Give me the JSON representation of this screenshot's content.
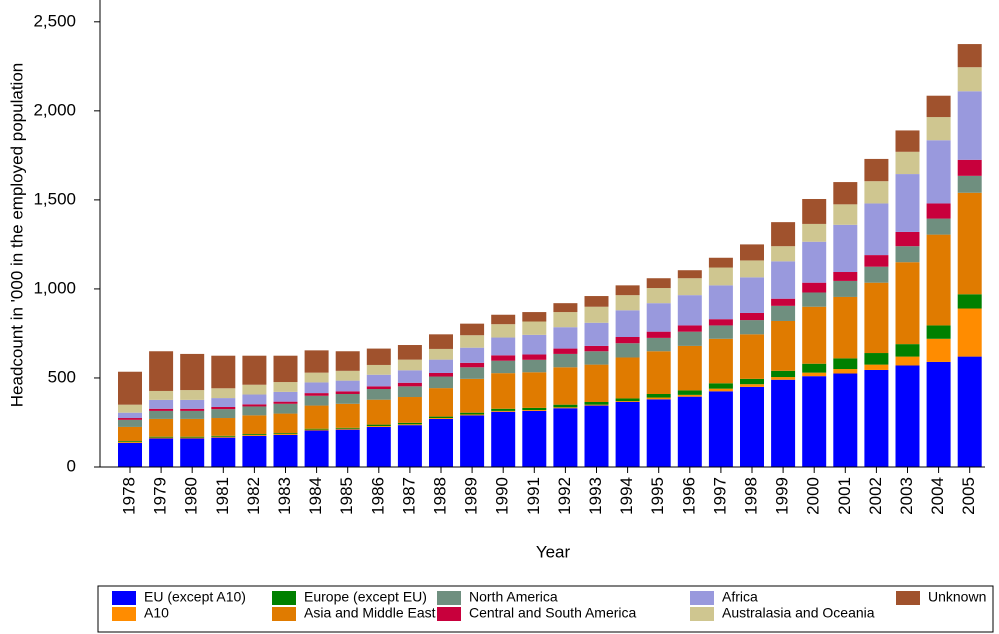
{
  "chart_data": {
    "type": "stacked_bar",
    "x_label": "Year",
    "y_label": "Headcount in '000 in the employed population",
    "categories": [
      "1978",
      "1979",
      "1980",
      "1981",
      "1982",
      "1983",
      "1984",
      "1985",
      "1986",
      "1987",
      "1988",
      "1989",
      "1990",
      "1991",
      "1992",
      "1993",
      "1994",
      "1995",
      "1996",
      "1997",
      "1998",
      "1999",
      "2000",
      "2001",
      "2002",
      "2003",
      "2004",
      "2005"
    ],
    "ylim": [
      0,
      2600
    ],
    "yticks": [
      0,
      500,
      {
        "value": 1000,
        "label": "1,000"
      },
      {
        "value": 1500,
        "label": "1,500"
      },
      {
        "value": 2000,
        "label": "2,000"
      },
      {
        "value": 2500,
        "label": "2,500"
      }
    ],
    "series": [
      {
        "name": "EU (except A10)",
        "color": "#0000ff",
        "values": [
          135,
          160,
          160,
          165,
          175,
          180,
          205,
          210,
          225,
          235,
          270,
          290,
          310,
          315,
          330,
          345,
          365,
          380,
          395,
          425,
          450,
          490,
          510,
          525,
          545,
          570,
          590,
          620
        ]
      },
      {
        "name": "A10",
        "color": "#ff8c00",
        "values": [
          5,
          5,
          5,
          5,
          5,
          5,
          5,
          5,
          5,
          5,
          5,
          5,
          5,
          5,
          5,
          5,
          5,
          10,
          10,
          15,
          15,
          15,
          20,
          25,
          30,
          50,
          130,
          270
        ]
      },
      {
        "name": "Europe (except EU)",
        "color": "#008000",
        "values": [
          5,
          5,
          5,
          5,
          5,
          5,
          5,
          5,
          8,
          8,
          8,
          10,
          12,
          12,
          15,
          15,
          15,
          20,
          25,
          30,
          30,
          35,
          50,
          60,
          65,
          70,
          75,
          80
        ]
      },
      {
        "name": "Asia and Middle East",
        "color": "#e07b00",
        "values": [
          80,
          100,
          100,
          100,
          105,
          110,
          130,
          135,
          140,
          145,
          160,
          190,
          200,
          200,
          210,
          210,
          230,
          240,
          250,
          250,
          250,
          280,
          320,
          345,
          395,
          460,
          510,
          570
        ]
      },
      {
        "name": "North America",
        "color": "#6f8f7f",
        "values": [
          40,
          45,
          45,
          50,
          50,
          55,
          55,
          55,
          60,
          60,
          65,
          65,
          70,
          70,
          75,
          75,
          80,
          75,
          80,
          75,
          80,
          85,
          80,
          90,
          90,
          90,
          90,
          95
        ]
      },
      {
        "name": "Central and South America",
        "color": "#c8003c",
        "values": [
          10,
          12,
          12,
          12,
          12,
          12,
          15,
          15,
          15,
          20,
          20,
          25,
          30,
          30,
          30,
          30,
          35,
          35,
          35,
          35,
          40,
          40,
          55,
          50,
          65,
          80,
          85,
          90
        ]
      },
      {
        "name": "Africa",
        "color": "#9999dd",
        "values": [
          30,
          50,
          50,
          50,
          55,
          55,
          60,
          60,
          65,
          70,
          75,
          85,
          100,
          110,
          120,
          130,
          150,
          160,
          170,
          190,
          200,
          210,
          230,
          265,
          290,
          325,
          355,
          385
        ]
      },
      {
        "name": "Australasia and Oceania",
        "color": "#cfc690",
        "values": [
          45,
          50,
          55,
          55,
          55,
          55,
          55,
          55,
          55,
          60,
          60,
          70,
          75,
          75,
          85,
          90,
          85,
          85,
          95,
          100,
          95,
          85,
          100,
          115,
          125,
          125,
          130,
          135
        ]
      },
      {
        "name": "Unknown",
        "color": "#a0522d",
        "values": [
          185,
          223,
          203,
          183,
          163,
          148,
          125,
          110,
          92,
          82,
          82,
          65,
          53,
          53,
          50,
          60,
          55,
          55,
          45,
          55,
          90,
          135,
          140,
          125,
          125,
          120,
          120,
          130
        ]
      }
    ]
  }
}
